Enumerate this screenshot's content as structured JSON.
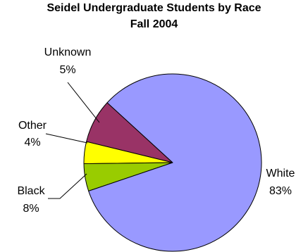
{
  "chart_data": {
    "type": "pie",
    "title": [
      "Seidel Undergraduate Students by Race",
      "Fall 2004"
    ],
    "slices": [
      {
        "name": "White",
        "value": 83,
        "label": "83%",
        "color": "#9999ff"
      },
      {
        "name": "Black",
        "value": 8,
        "label": "8%",
        "color": "#993366"
      },
      {
        "name": "Other",
        "value": 4,
        "label": "4%",
        "color": "#ffff00"
      },
      {
        "name": "Unknown",
        "value": 5,
        "label": "5%",
        "color": "#99cc00"
      }
    ],
    "legend": "none",
    "data_labels": "category and percentage"
  }
}
